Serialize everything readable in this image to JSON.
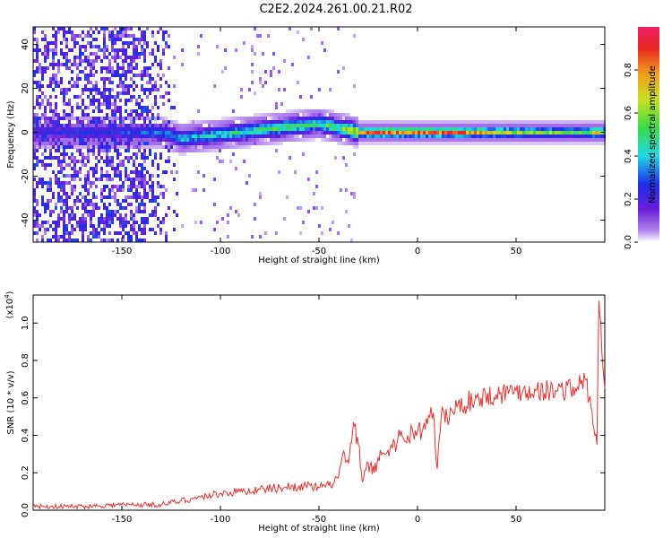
{
  "title": "C2E2.2024.261.00.21.R02",
  "chart_data": [
    {
      "type": "heatmap",
      "xlabel": "Height of straight line (km)",
      "ylabel": "Frequency (Hz)",
      "xlim": [
        -195,
        95
      ],
      "ylim": [
        -50,
        48
      ],
      "xticks": [
        -150,
        -100,
        -50,
        0,
        50
      ],
      "yticks": [
        -40,
        -20,
        0,
        20,
        40
      ],
      "colorbar": {
        "label": "Normalized spectral amplitude",
        "range": [
          0,
          1
        ],
        "ticks": [
          "0.0",
          "0.2",
          "0.4",
          "0.6",
          "0.8"
        ],
        "colormap": "rainbow (white-violet-blue-cyan-green-yellow-red-magenta)"
      },
      "ridge": {
        "x": [
          -190,
          -150,
          -130,
          -120,
          -100,
          -80,
          -60,
          -50,
          -45,
          -40,
          -35,
          -30,
          -25,
          -20,
          -10,
          0,
          5,
          10,
          30,
          50,
          70,
          85,
          90,
          95
        ],
        "y": [
          0,
          0,
          0,
          -3,
          -1,
          1,
          3,
          4,
          3,
          2,
          1,
          0,
          0,
          0,
          0,
          0,
          0,
          0,
          0,
          0,
          0,
          0,
          0,
          0
        ],
        "peak_amplitude": [
          0.25,
          0.3,
          0.35,
          0.45,
          0.5,
          0.55,
          0.6,
          0.55,
          0.6,
          0.55,
          0.75,
          0.85,
          0.9,
          0.95,
          0.95,
          0.95,
          0.9,
          0.95,
          0.85,
          0.7,
          0.65,
          0.6,
          0.8,
          0.7
        ]
      },
      "scatter_zone": {
        "x": [
          -195,
          -120
        ],
        "amplitude": [
          0.05,
          0.3
        ]
      }
    },
    {
      "type": "line",
      "xlabel": "Height of straight line (km)",
      "ylabel": "SNR (10 * v/v)",
      "scale_label": "(x10",
      "scale_exponent": "4",
      "xlim": [
        -195,
        95
      ],
      "ylim": [
        0,
        1.15
      ],
      "xticks": [
        -150,
        -100,
        -50,
        0,
        50
      ],
      "yticks": [
        "0.0",
        "0.2",
        "0.4",
        "0.6",
        "0.8",
        "1.0"
      ],
      "color": "#e8312e",
      "series": [
        {
          "x": [
            -195,
            -170,
            -150,
            -130,
            -120,
            -110,
            -100,
            -90,
            -80,
            -70,
            -60,
            -50,
            -45,
            -40,
            -38,
            -35,
            -32,
            -30,
            -28,
            -25,
            -22,
            -20,
            -15,
            -10,
            -5,
            0,
            5,
            8,
            10,
            12,
            15,
            20,
            30,
            40,
            50,
            60,
            70,
            80,
            85,
            88,
            90,
            91,
            92,
            95
          ],
          "y": [
            0.02,
            0.02,
            0.03,
            0.03,
            0.05,
            0.07,
            0.09,
            0.1,
            0.11,
            0.12,
            0.13,
            0.12,
            0.13,
            0.18,
            0.3,
            0.25,
            0.45,
            0.35,
            0.15,
            0.25,
            0.2,
            0.28,
            0.32,
            0.38,
            0.4,
            0.42,
            0.46,
            0.52,
            0.22,
            0.5,
            0.5,
            0.55,
            0.6,
            0.62,
            0.64,
            0.64,
            0.64,
            0.65,
            0.7,
            0.55,
            0.4,
            0.35,
            1.12,
            0.65
          ]
        }
      ]
    }
  ]
}
